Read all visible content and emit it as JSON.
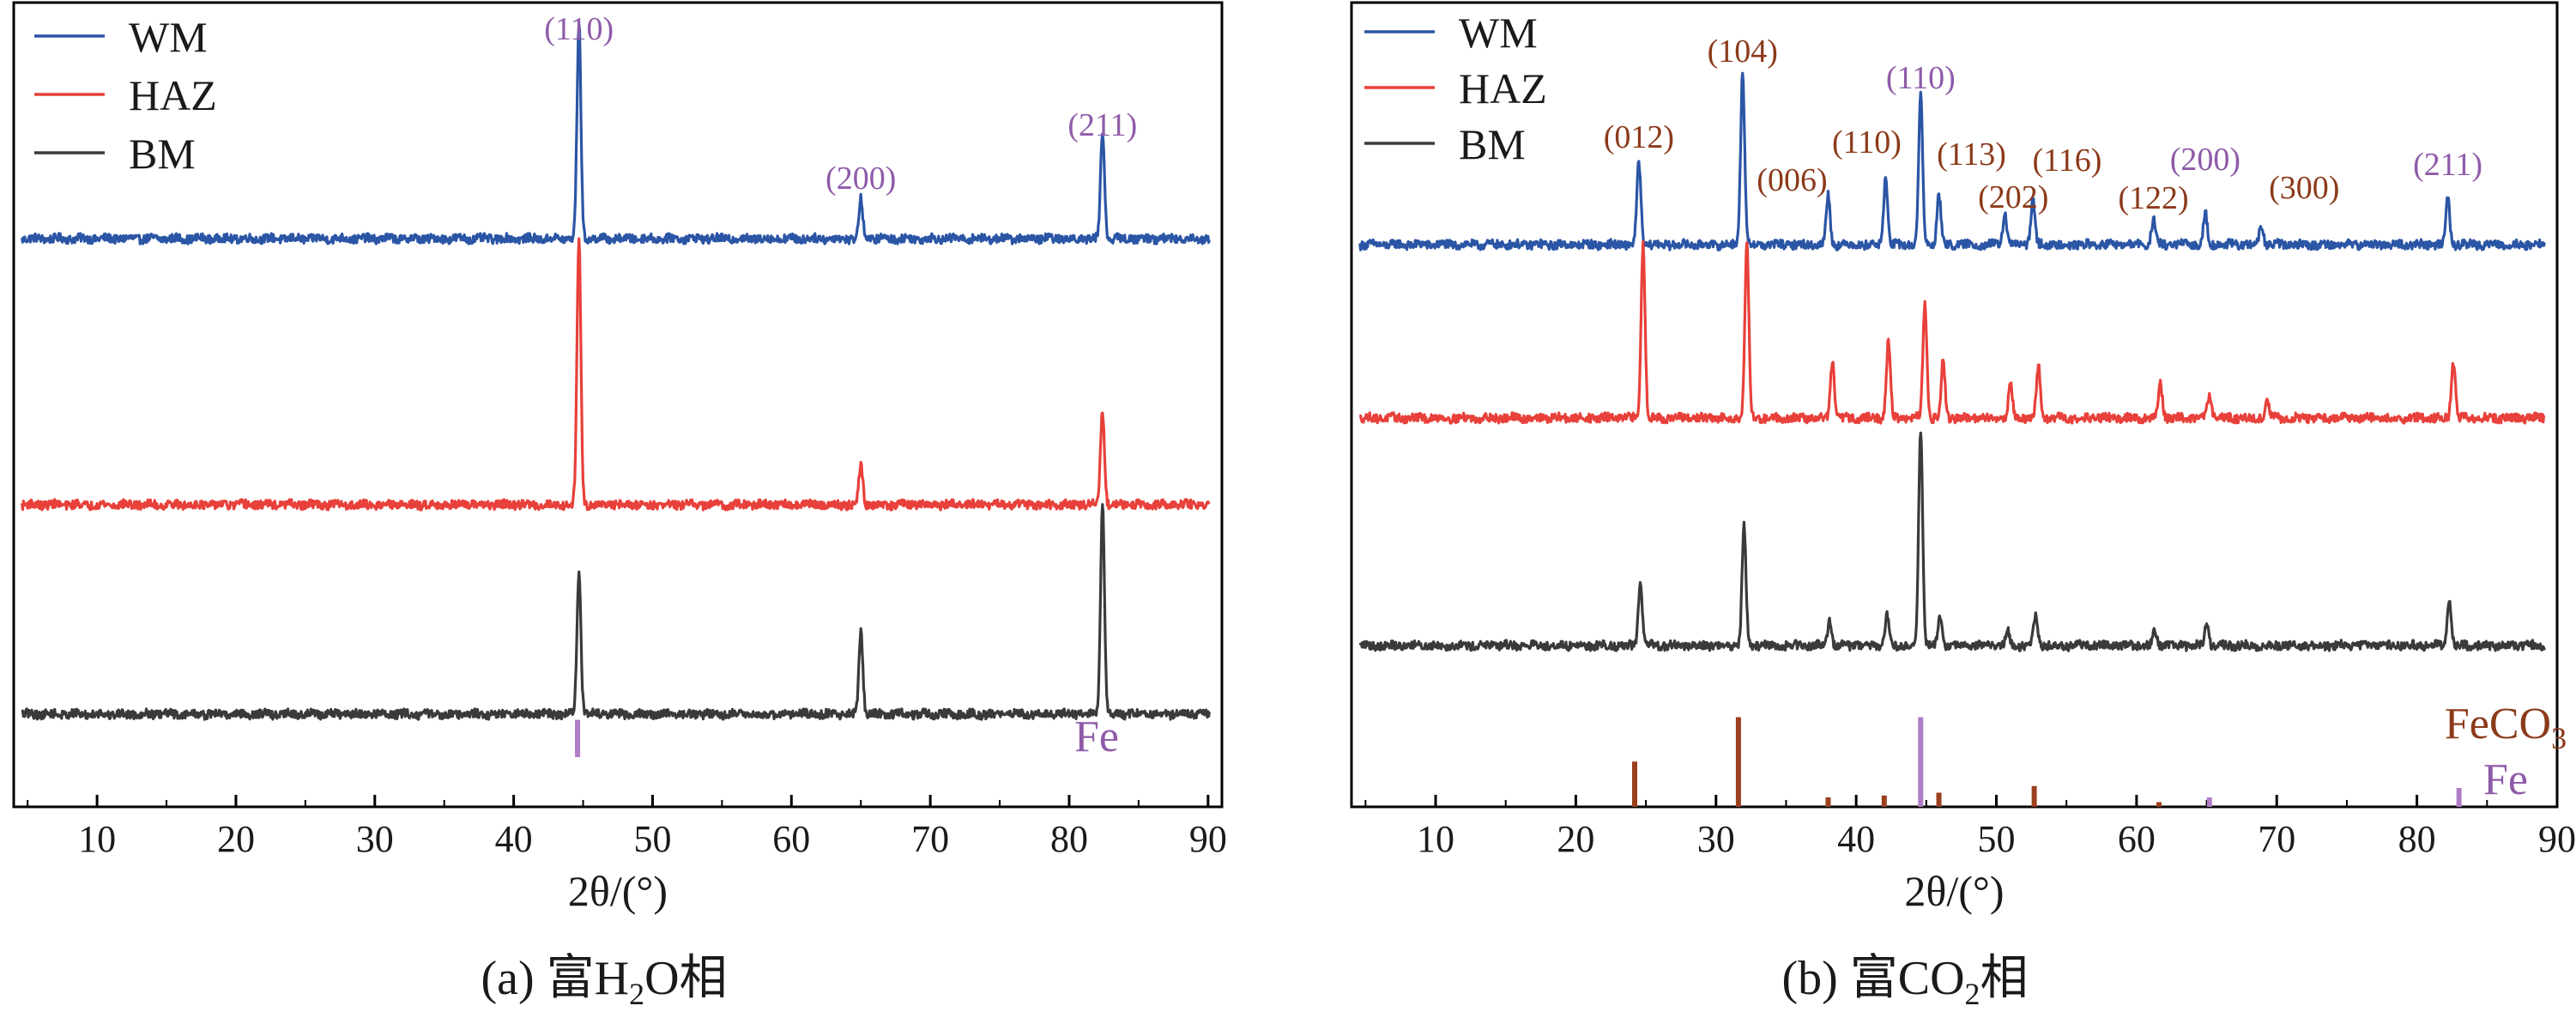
{
  "colors": {
    "WM": "#2b55a5",
    "HAZ": "#e8403a",
    "BM": "#3a3a3a",
    "FeCO3_ref": "#9c3f1e",
    "Fe_ref": "#b07cc6",
    "Fe_label": "#8e5ba8",
    "FeCO3_label": "#8b3a1a"
  },
  "chart_data": [
    {
      "panel": "a",
      "type": "line",
      "title": "(a) 富H₂O相",
      "title_parts": [
        "(a) 富H",
        "2",
        "O相"
      ],
      "xlabel": "2θ/(°)",
      "ylabel": "",
      "xlim": [
        4,
        91
      ],
      "xticks": [
        10,
        20,
        30,
        40,
        50,
        60,
        70,
        80,
        90
      ],
      "grid": false,
      "legend_position": "top-left",
      "legend": [
        "WM",
        "HAZ",
        "BM"
      ],
      "series": [
        {
          "name": "WM",
          "baseline": 1.0,
          "noise": 0.06,
          "peaks": [
            [
              44.7,
              2.1
            ],
            [
              65.0,
              0.38
            ],
            [
              82.4,
              1.05
            ]
          ]
        },
        {
          "name": "HAZ",
          "baseline": 1.0,
          "noise": 0.06,
          "peaks": [
            [
              44.7,
              2.6
            ],
            [
              65.0,
              0.38
            ],
            [
              82.4,
              0.92
            ]
          ]
        },
        {
          "name": "BM",
          "baseline": 1.0,
          "noise": 0.06,
          "peaks": [
            [
              44.7,
              1.4
            ],
            [
              65.0,
              0.82
            ],
            [
              82.4,
              2.05
            ]
          ]
        }
      ],
      "reference": [
        {
          "name": "Fe",
          "peaks": [
            [
              44.6,
              0.7
            ]
          ]
        }
      ],
      "annotations": [
        {
          "text": "(110)",
          "x": 44.7,
          "phase": "Fe"
        },
        {
          "text": "(200)",
          "x": 65.0,
          "phase": "Fe"
        },
        {
          "text": "(211)",
          "x": 82.4,
          "phase": "Fe"
        }
      ],
      "reference_labels": [
        {
          "text": "Fe",
          "phase": "Fe"
        }
      ]
    },
    {
      "panel": "b",
      "type": "line",
      "title": "(b) 富CO₂相",
      "title_parts": [
        "(b) 富CO",
        "2",
        "相"
      ],
      "xlabel": "2θ/(°)",
      "ylabel": "",
      "xlim": [
        4,
        90
      ],
      "xticks": [
        10,
        20,
        30,
        40,
        50,
        60,
        70,
        80,
        90
      ],
      "grid": false,
      "legend_position": "top-left",
      "legend": [
        "WM",
        "HAZ",
        "BM"
      ],
      "series": [
        {
          "name": "WM",
          "baseline": 1.0,
          "noise": 0.06,
          "peaks": [
            [
              24.5,
              0.8
            ],
            [
              31.9,
              1.7
            ],
            [
              38.0,
              0.48
            ],
            [
              42.1,
              0.65
            ],
            [
              44.6,
              1.45
            ],
            [
              45.9,
              0.48
            ],
            [
              50.6,
              0.3
            ],
            [
              52.6,
              0.45
            ],
            [
              61.2,
              0.24
            ],
            [
              64.9,
              0.3
            ],
            [
              68.9,
              0.18
            ],
            [
              82.2,
              0.45
            ]
          ]
        },
        {
          "name": "HAZ",
          "baseline": 1.0,
          "noise": 0.06,
          "peaks": [
            [
              24.8,
              1.7
            ],
            [
              32.2,
              1.7
            ],
            [
              38.3,
              0.55
            ],
            [
              42.3,
              0.75
            ],
            [
              44.9,
              1.1
            ],
            [
              46.2,
              0.55
            ],
            [
              51.0,
              0.33
            ],
            [
              53.0,
              0.5
            ],
            [
              61.7,
              0.33
            ],
            [
              65.2,
              0.24
            ],
            [
              69.3,
              0.18
            ],
            [
              82.6,
              0.55
            ]
          ]
        },
        {
          "name": "BM",
          "baseline": 1.0,
          "noise": 0.06,
          "peaks": [
            [
              24.6,
              0.6
            ],
            [
              32.0,
              1.15
            ],
            [
              38.1,
              0.25
            ],
            [
              42.2,
              0.3
            ],
            [
              44.6,
              2.1
            ],
            [
              46.0,
              0.28
            ],
            [
              50.8,
              0.15
            ],
            [
              52.8,
              0.3
            ],
            [
              61.3,
              0.15
            ],
            [
              65.0,
              0.2
            ],
            [
              82.3,
              0.45
            ]
          ]
        }
      ],
      "reference": [
        {
          "name": "FeCO3",
          "peaks": [
            [
              24.2,
              0.48
            ],
            [
              31.6,
              0.95
            ],
            [
              38.0,
              0.1
            ],
            [
              42.0,
              0.12
            ],
            [
              45.9,
              0.15
            ],
            [
              52.7,
              0.22
            ],
            [
              61.6,
              0.05
            ]
          ]
        },
        {
          "name": "Fe",
          "peaks": [
            [
              44.6,
              0.95
            ],
            [
              65.2,
              0.1
            ],
            [
              83.0,
              0.2
            ]
          ]
        }
      ],
      "annotations": [
        {
          "text": "(012)",
          "x": 24.5,
          "phase": "FeCO3"
        },
        {
          "text": "(104)",
          "x": 31.9,
          "phase": "FeCO3"
        },
        {
          "text": "(006)",
          "x": 38.0,
          "phase": "FeCO3"
        },
        {
          "text": "(110)",
          "x": 42.1,
          "phase": "FeCO3"
        },
        {
          "text": "(110)",
          "x": 44.6,
          "phase": "Fe"
        },
        {
          "text": "(113)",
          "x": 45.9,
          "phase": "FeCO3"
        },
        {
          "text": "(202)",
          "x": 50.6,
          "phase": "FeCO3"
        },
        {
          "text": "(116)",
          "x": 52.6,
          "phase": "FeCO3"
        },
        {
          "text": "(122)",
          "x": 61.2,
          "phase": "FeCO3"
        },
        {
          "text": "(200)",
          "x": 64.9,
          "phase": "Fe"
        },
        {
          "text": "(300)",
          "x": 68.9,
          "phase": "FeCO3"
        },
        {
          "text": "(211)",
          "x": 82.2,
          "phase": "Fe"
        }
      ],
      "reference_labels": [
        {
          "text": "FeCO3",
          "parts": [
            "FeCO",
            "3"
          ],
          "phase": "FeCO3"
        },
        {
          "text": "Fe",
          "phase": "Fe"
        }
      ]
    }
  ]
}
